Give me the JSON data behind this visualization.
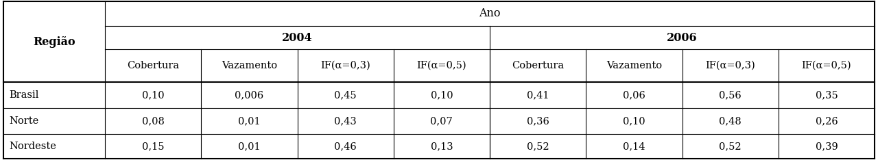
{
  "title": "Ano",
  "sub_years": [
    "2004",
    "2006"
  ],
  "col_headers": [
    "Cobertura",
    "Vazamento",
    "IF(α=0,3)",
    "IF(α=0,5)",
    "Cobertura",
    "Vazamento",
    "IF(α=0,3)",
    "IF(α=0,5)"
  ],
  "region_label": "Região",
  "rows": [
    [
      "Brasil",
      "0,10",
      "0,006",
      "0,45",
      "0,10",
      "0,41",
      "0,06",
      "0,56",
      "0,35"
    ],
    [
      "Norte",
      "0,08",
      "0,01",
      "0,43",
      "0,07",
      "0,36",
      "0,10",
      "0,48",
      "0,26"
    ],
    [
      "Nordeste",
      "0,15",
      "0,01",
      "0,46",
      "0,13",
      "0,52",
      "0,14",
      "0,52",
      "0,39"
    ]
  ],
  "background_color": "#ffffff",
  "text_color": "#000000",
  "font_size": 10.5,
  "bold_font_size": 11.5,
  "line_color": "#000000",
  "thick_lw": 1.5,
  "thin_lw": 0.8
}
